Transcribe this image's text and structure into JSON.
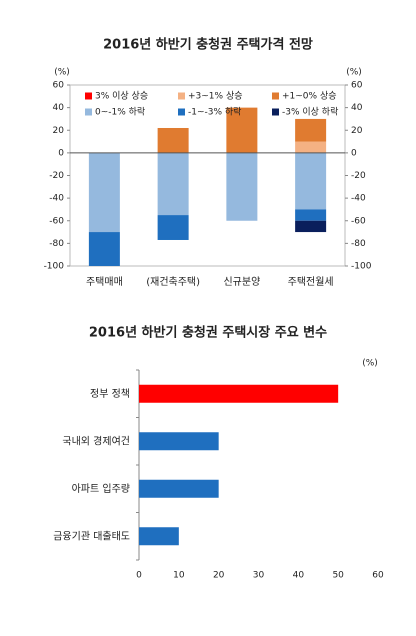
{
  "chart_data": [
    {
      "type": "stacked-bar",
      "title": "2016년 하반기 충청권 주택가격 전망",
      "y_label": "(%)",
      "y2_label": "(%)",
      "categories": [
        "주택매매",
        "(재건축주택)",
        "신규분양",
        "주택전월세"
      ],
      "series": [
        {
          "name": "3% 이상 상승",
          "color": "#ff0000",
          "values": [
            0,
            0,
            0,
            0
          ]
        },
        {
          "name": "+3~1% 상승",
          "color": "#f4b183",
          "values": [
            0,
            0,
            0,
            10
          ]
        },
        {
          "name": "+1~0% 상승",
          "color": "#e07b30",
          "values": [
            0,
            22,
            40,
            20
          ]
        },
        {
          "name": "0~-1% 하락",
          "color": "#95b9de",
          "values": [
            -70,
            -55,
            -60,
            -50
          ]
        },
        {
          "name": "-1~-3% 하락",
          "color": "#1f6fbf",
          "values": [
            -30,
            -22,
            0,
            -10
          ]
        },
        {
          "name": "-3% 이상 하락",
          "color": "#0a1f5c",
          "values": [
            0,
            0,
            0,
            -10
          ]
        }
      ],
      "ylim": [
        -100,
        60
      ],
      "yticks": [
        -100,
        -80,
        -60,
        -40,
        -20,
        0,
        20,
        40,
        60
      ],
      "y2lim": [
        -100,
        60
      ],
      "y2ticks": [
        -100,
        -80,
        -60,
        -40,
        -20,
        0,
        20,
        40,
        60
      ],
      "legend": "top"
    },
    {
      "type": "hbar",
      "title": "2016년 하반기 충청권 주택시장 주요 변수",
      "x_label": "(%)",
      "categories": [
        "정부 정책",
        "국내외 경제여건",
        "아파트 입주량",
        "금융기관 대출태도"
      ],
      "values": [
        50,
        20,
        20,
        10
      ],
      "colors": [
        "#ff0000",
        "#1f6fbf",
        "#1f6fbf",
        "#1f6fbf"
      ],
      "xlim": [
        0,
        60
      ],
      "xticks": [
        0,
        10,
        20,
        30,
        40,
        50,
        60
      ]
    }
  ]
}
